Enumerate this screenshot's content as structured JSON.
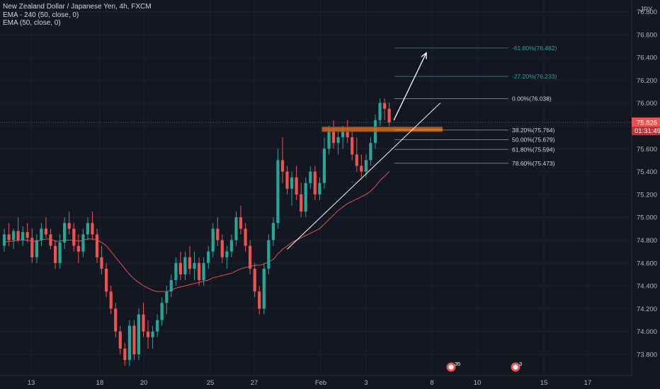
{
  "header": {
    "symbol_title": "New Zealand Dollar / Japanese Yen, 4h, FXCM",
    "ema1": "EMA - 240 (50, close, 0)",
    "ema2": "EMA (50, close, 0)",
    "currency": "JPY"
  },
  "price_tag": {
    "price": "75.826",
    "countdown": "01:31:49"
  },
  "colors": {
    "background": "#131722",
    "up": "#26a69a",
    "down": "#ef5350",
    "ema": "#e0524c",
    "fib_ext": "#26a69a",
    "fib_ret": "#d1d4dc",
    "zone": "#d2691e",
    "price_line": "#ef5350"
  },
  "chart_data": {
    "type": "candlestick",
    "y_ticks": [
      "76.800",
      "76.600",
      "76.400",
      "76.200",
      "76.000",
      "75.800",
      "75.600",
      "75.400",
      "75.200",
      "75.000",
      "74.800",
      "74.600",
      "74.400",
      "74.200",
      "74.000",
      "73.800"
    ],
    "x_ticks": [
      "13",
      "18",
      "20",
      "25",
      "27",
      "Feb",
      "3",
      "8",
      "10",
      "15",
      "17"
    ],
    "ylim": [
      73.63,
      76.86
    ],
    "bars": [
      [
        74.75,
        74.9,
        74.7,
        74.85
      ],
      [
        74.85,
        74.95,
        74.75,
        74.8
      ],
      [
        74.8,
        74.9,
        74.72,
        74.88
      ],
      [
        74.88,
        75.0,
        74.78,
        74.8
      ],
      [
        74.8,
        74.92,
        74.75,
        74.87
      ],
      [
        74.87,
        74.95,
        74.78,
        74.82
      ],
      [
        74.82,
        74.9,
        74.6,
        74.65
      ],
      [
        74.65,
        74.85,
        74.6,
        74.8
      ],
      [
        74.8,
        74.95,
        74.75,
        74.9
      ],
      [
        74.9,
        75.0,
        74.82,
        74.85
      ],
      [
        74.85,
        74.9,
        74.72,
        74.75
      ],
      [
        74.75,
        74.8,
        74.55,
        74.6
      ],
      [
        74.6,
        74.85,
        74.55,
        74.78
      ],
      [
        74.78,
        75.0,
        74.72,
        74.95
      ],
      [
        74.95,
        75.05,
        74.85,
        74.9
      ],
      [
        74.9,
        74.95,
        74.7,
        74.75
      ],
      [
        74.75,
        74.85,
        74.6,
        74.7
      ],
      [
        74.7,
        74.9,
        74.65,
        74.85
      ],
      [
        74.85,
        75.0,
        74.8,
        74.95
      ],
      [
        74.95,
        75.05,
        74.8,
        74.85
      ],
      [
        74.85,
        74.9,
        74.6,
        74.65
      ],
      [
        74.65,
        74.75,
        74.5,
        74.55
      ],
      [
        74.55,
        74.6,
        74.3,
        74.35
      ],
      [
        74.35,
        74.4,
        74.15,
        74.2
      ],
      [
        74.2,
        74.25,
        73.95,
        74.0
      ],
      [
        74.0,
        74.05,
        73.8,
        73.85
      ],
      [
        73.85,
        73.9,
        73.7,
        73.75
      ],
      [
        73.75,
        74.1,
        73.7,
        74.05
      ],
      [
        74.05,
        74.1,
        73.75,
        73.8
      ],
      [
        73.8,
        74.2,
        73.75,
        74.15
      ],
      [
        74.15,
        74.25,
        73.95,
        74.0
      ],
      [
        74.0,
        74.1,
        73.85,
        73.95
      ],
      [
        73.95,
        74.05,
        73.85,
        74.0
      ],
      [
        74.0,
        74.15,
        73.95,
        74.1
      ],
      [
        74.1,
        74.3,
        74.05,
        74.25
      ],
      [
        74.25,
        74.4,
        74.15,
        74.35
      ],
      [
        74.35,
        74.5,
        74.3,
        74.45
      ],
      [
        74.45,
        74.65,
        74.4,
        74.6
      ],
      [
        74.6,
        74.7,
        74.45,
        74.5
      ],
      [
        74.5,
        74.7,
        74.45,
        74.65
      ],
      [
        74.65,
        74.75,
        74.5,
        74.55
      ],
      [
        74.55,
        74.7,
        74.45,
        74.6
      ],
      [
        74.6,
        74.65,
        74.4,
        74.45
      ],
      [
        74.45,
        74.65,
        74.4,
        74.6
      ],
      [
        74.6,
        74.75,
        74.55,
        74.7
      ],
      [
        74.7,
        74.95,
        74.65,
        74.9
      ],
      [
        74.9,
        75.0,
        74.75,
        74.8
      ],
      [
        74.8,
        74.85,
        74.6,
        74.65
      ],
      [
        74.65,
        74.75,
        74.55,
        74.7
      ],
      [
        74.7,
        74.85,
        74.65,
        74.8
      ],
      [
        74.8,
        75.05,
        74.75,
        75.0
      ],
      [
        75.0,
        75.1,
        74.85,
        74.9
      ],
      [
        74.9,
        74.95,
        74.7,
        74.75
      ],
      [
        74.75,
        74.8,
        74.5,
        74.55
      ],
      [
        74.55,
        74.6,
        74.3,
        74.35
      ],
      [
        74.35,
        74.4,
        74.15,
        74.2
      ],
      [
        74.2,
        74.6,
        74.15,
        74.55
      ],
      [
        74.55,
        74.85,
        74.5,
        74.8
      ],
      [
        74.8,
        75.0,
        74.75,
        74.95
      ],
      [
        74.95,
        75.6,
        74.9,
        75.5
      ],
      [
        75.5,
        75.7,
        75.3,
        75.4
      ],
      [
        75.4,
        75.45,
        75.2,
        75.25
      ],
      [
        75.25,
        75.4,
        75.1,
        75.35
      ],
      [
        75.35,
        75.45,
        75.15,
        75.2
      ],
      [
        75.2,
        75.3,
        75.0,
        75.05
      ],
      [
        75.05,
        75.35,
        75.0,
        75.3
      ],
      [
        75.3,
        75.45,
        75.25,
        75.4
      ],
      [
        75.4,
        75.45,
        75.15,
        75.2
      ],
      [
        75.2,
        75.35,
        75.15,
        75.3
      ],
      [
        75.3,
        75.7,
        75.25,
        75.6
      ],
      [
        75.6,
        75.8,
        75.55,
        75.75
      ],
      [
        75.75,
        75.85,
        75.6,
        75.65
      ],
      [
        75.65,
        75.75,
        75.55,
        75.7
      ],
      [
        75.7,
        75.8,
        75.6,
        75.75
      ],
      [
        75.75,
        75.85,
        75.65,
        75.7
      ],
      [
        75.7,
        75.75,
        75.5,
        75.55
      ],
      [
        75.55,
        75.7,
        75.4,
        75.45
      ],
      [
        75.45,
        75.55,
        75.35,
        75.4
      ],
      [
        75.4,
        75.55,
        75.35,
        75.5
      ],
      [
        75.5,
        75.7,
        75.45,
        75.65
      ],
      [
        75.65,
        75.9,
        75.6,
        75.85
      ],
      [
        75.85,
        76.04,
        75.8,
        76.0
      ],
      [
        76.0,
        76.04,
        75.85,
        75.95
      ],
      [
        75.95,
        76.0,
        75.8,
        75.83
      ]
    ],
    "ema_values": [
      74.78,
      74.79,
      74.79,
      74.8,
      74.8,
      74.8,
      74.79,
      74.79,
      74.8,
      74.81,
      74.81,
      74.79,
      74.79,
      74.8,
      74.8,
      74.8,
      74.79,
      74.8,
      74.81,
      74.81,
      74.8,
      74.78,
      74.75,
      74.7,
      74.65,
      74.6,
      74.55,
      74.5,
      74.46,
      74.43,
      74.4,
      74.38,
      74.36,
      74.35,
      74.35,
      74.35,
      74.36,
      74.38,
      74.39,
      74.4,
      74.41,
      74.42,
      74.43,
      74.44,
      74.45,
      74.47,
      74.48,
      74.49,
      74.5,
      74.51,
      74.53,
      74.55,
      74.56,
      74.57,
      74.58,
      74.58,
      74.59,
      74.61,
      74.63,
      74.68,
      74.72,
      74.75,
      74.78,
      74.8,
      74.82,
      74.84,
      74.86,
      74.88,
      74.9,
      74.94,
      74.98,
      75.02,
      75.06,
      75.09,
      75.12,
      75.14,
      75.16,
      75.18,
      75.2,
      75.23,
      75.27,
      75.32,
      75.36,
      75.4
    ],
    "trendline": {
      "from_bar": 61,
      "from_price": 74.72,
      "to_bar": 94,
      "to_price": 76.0
    },
    "arrow": {
      "from_bar": 84,
      "from_price": 75.85,
      "to_bar": 91,
      "to_price": 76.44
    },
    "zone": {
      "from_bar": 69,
      "to_bar": 94,
      "low": 75.75,
      "high": 75.79
    },
    "fib_extension": [
      {
        "label": "-61.80%(76.482)",
        "price": 76.482
      },
      {
        "label": "-27.20%(76.233)",
        "price": 76.233
      }
    ],
    "fib_retracement": [
      {
        "label": "0.00%(76.038)",
        "price": 76.038
      },
      {
        "label": "38.20%(75.764)",
        "price": 75.764
      },
      {
        "label": "50.00%(75.679)",
        "price": 75.679
      },
      {
        "label": "61.80%(75.594)",
        "price": 75.594
      },
      {
        "label": "78.60%(75.473)",
        "price": 75.473
      }
    ],
    "events": [
      {
        "label": "3",
        "badge": "5"
      },
      {
        "label": "3",
        "badge": ""
      }
    ]
  }
}
